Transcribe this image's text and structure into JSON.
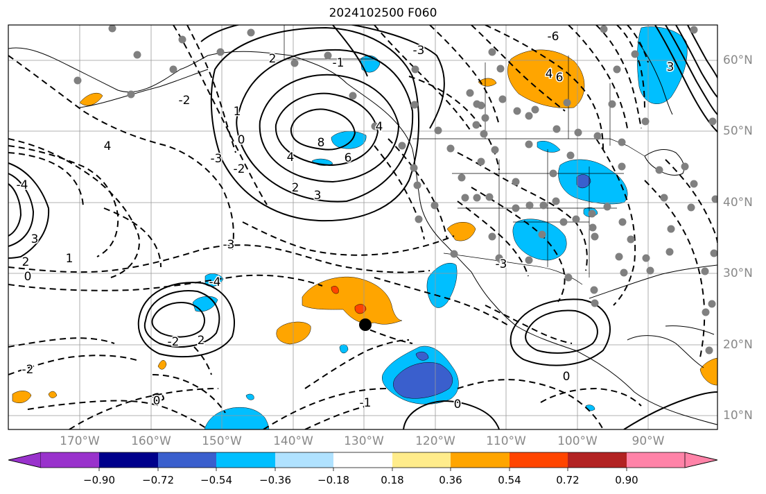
{
  "title": "2024102500 F060",
  "map": {
    "lon_labels": [
      "170°W",
      "160°W",
      "150°W",
      "140°W",
      "130°W",
      "120°W",
      "110°W",
      "100°W",
      "90°W"
    ],
    "lat_labels": [
      "60°N",
      "50°N",
      "40°N",
      "30°N",
      "20°N",
      "10°N"
    ],
    "contour_labels": [
      {
        "text": "8"
      },
      {
        "text": "6"
      },
      {
        "text": "4"
      },
      {
        "text": "3"
      },
      {
        "text": "2"
      },
      {
        "text": "1"
      },
      {
        "text": "0"
      },
      {
        "text": "-2"
      },
      {
        "text": "4"
      },
      {
        "text": "-3"
      },
      {
        "text": "-4"
      },
      {
        "text": "1"
      },
      {
        "text": "2"
      },
      {
        "text": "0"
      },
      {
        "text": "-2"
      },
      {
        "text": "-3"
      },
      {
        "text": "-4"
      },
      {
        "text": "-2"
      },
      {
        "text": "2"
      },
      {
        "text": "3"
      },
      {
        "text": "0"
      },
      {
        "text": "0"
      },
      {
        "text": "-1"
      },
      {
        "text": "0"
      },
      {
        "text": "2"
      },
      {
        "text": "-1"
      },
      {
        "text": "-6"
      },
      {
        "text": "4"
      },
      {
        "text": "3"
      },
      {
        "text": "4"
      },
      {
        "text": "-3"
      },
      {
        "text": "6"
      },
      {
        "text": "-3"
      },
      {
        "text": "-2"
      }
    ]
  },
  "colorbar": {
    "tick_labels": [
      "−0.90",
      "−0.72",
      "−0.54",
      "−0.36",
      "−0.18",
      "0.18",
      "0.36",
      "0.54",
      "0.72",
      "0.90"
    ],
    "colors": [
      "#9932cc",
      "#00008b",
      "#3a5fcd",
      "#00bfff",
      "#b0e2ff",
      "#ffffff",
      "#ffec8b",
      "#ffa500",
      "#ff4500",
      "#b22222",
      "#ff83a8"
    ]
  }
}
